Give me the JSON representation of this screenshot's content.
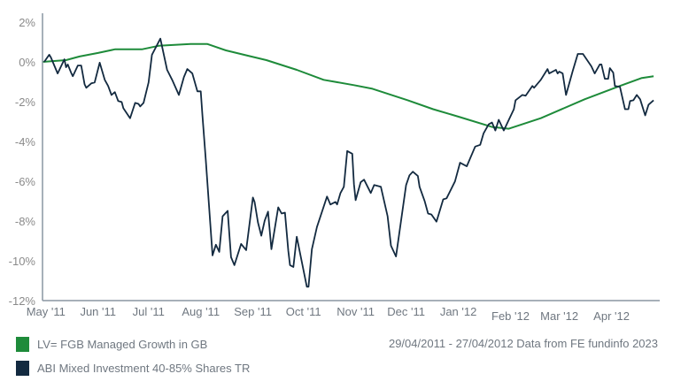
{
  "chart_data": {
    "type": "line",
    "title": "",
    "xlabel": "",
    "ylabel": "",
    "xlim": [
      "2011-04-29",
      "2012-04-27"
    ],
    "ylim": [
      -12,
      2
    ],
    "y_ticks": [
      "2%",
      "0%",
      "-2%",
      "-4%",
      "-6%",
      "-8%",
      "-10%",
      "-12%"
    ],
    "y_tick_values": [
      2,
      0,
      -2,
      -4,
      -6,
      -8,
      -10,
      -12
    ],
    "x_ticks": [
      "May '11",
      "Jun '11",
      "Jul '11",
      "Aug '11",
      "Sep '11",
      "Oct '11",
      "Nov '11",
      "Dec '11",
      "Jan '12",
      "Feb '12",
      "Mar '12",
      "Apr '12"
    ],
    "x_tick_dates": [
      "2011-05-01",
      "2011-06-01",
      "2011-07-01",
      "2011-08-01",
      "2011-09-01",
      "2011-10-01",
      "2011-11-01",
      "2011-12-01",
      "2012-01-01",
      "2012-02-01",
      "2012-03-01",
      "2012-04-01"
    ],
    "grid": false,
    "legend_position": "bottom-left",
    "caption": "29/04/2011 - 27/04/2012 Data from FE fundinfo 2023",
    "series": [
      {
        "name": "LV= FGB Managed Growth in GB",
        "color": "#1e8b3a",
        "points": [
          [
            "2011-04-29",
            0
          ],
          [
            "2011-05-13",
            0.09
          ],
          [
            "2011-05-21",
            0.27
          ],
          [
            "2011-06-01",
            0.45
          ],
          [
            "2011-06-11",
            0.63
          ],
          [
            "2011-06-27",
            0.63
          ],
          [
            "2011-07-07",
            0.81
          ],
          [
            "2011-07-26",
            0.9
          ],
          [
            "2011-08-05",
            0.9
          ],
          [
            "2011-08-16",
            0.58
          ],
          [
            "2011-08-29",
            0.31
          ],
          [
            "2011-09-09",
            0.09
          ],
          [
            "2011-09-27",
            -0.4
          ],
          [
            "2011-10-13",
            -0.9
          ],
          [
            "2011-10-31",
            -1.17
          ],
          [
            "2011-11-11",
            -1.35
          ],
          [
            "2011-12-02",
            -1.93
          ],
          [
            "2011-12-17",
            -2.38
          ],
          [
            "2012-01-02",
            -2.78
          ],
          [
            "2012-01-21",
            -3.27
          ],
          [
            "2012-01-31",
            -3.36
          ],
          [
            "2012-02-19",
            -2.83
          ],
          [
            "2012-03-16",
            -1.88
          ],
          [
            "2012-04-06",
            -1.21
          ],
          [
            "2012-04-19",
            -0.81
          ],
          [
            "2012-04-26",
            -0.72
          ]
        ]
      },
      {
        "name": "ABI Mixed Investment 40-85% Shares TR",
        "color": "#132a40",
        "points": [
          [
            "2011-04-30",
            0
          ],
          [
            "2011-05-03",
            0.36
          ],
          [
            "2011-05-04",
            0.22
          ],
          [
            "2011-05-08",
            -0.58
          ],
          [
            "2011-05-12",
            0.13
          ],
          [
            "2011-05-13",
            -0.27
          ],
          [
            "2011-05-14",
            -0.13
          ],
          [
            "2011-05-16",
            -0.54
          ],
          [
            "2011-05-17",
            -0.72
          ],
          [
            "2011-05-20",
            -0.18
          ],
          [
            "2011-05-22",
            -0.18
          ],
          [
            "2011-05-24",
            -1.12
          ],
          [
            "2011-05-25",
            -1.3
          ],
          [
            "2011-05-28",
            -1.08
          ],
          [
            "2011-05-30",
            -1.03
          ],
          [
            "2011-06-02",
            -0.04
          ],
          [
            "2011-06-05",
            -0.9
          ],
          [
            "2011-06-07",
            -1.21
          ],
          [
            "2011-06-09",
            -1.66
          ],
          [
            "2011-06-11",
            -1.52
          ],
          [
            "2011-06-13",
            -1.97
          ],
          [
            "2011-06-15",
            -2.02
          ],
          [
            "2011-06-16",
            -2.33
          ],
          [
            "2011-06-20",
            -2.83
          ],
          [
            "2011-06-23",
            -2.06
          ],
          [
            "2011-06-25",
            -2.11
          ],
          [
            "2011-06-26",
            -2.24
          ],
          [
            "2011-06-28",
            -2.06
          ],
          [
            "2011-07-01",
            -1.03
          ],
          [
            "2011-07-03",
            0.36
          ],
          [
            "2011-07-08",
            1.17
          ],
          [
            "2011-07-12",
            -0.4
          ],
          [
            "2011-07-15",
            -0.9
          ],
          [
            "2011-07-19",
            -1.66
          ],
          [
            "2011-07-22",
            -0.76
          ],
          [
            "2011-07-24",
            -0.36
          ],
          [
            "2011-07-27",
            -0.58
          ],
          [
            "2011-07-30",
            -1.48
          ],
          [
            "2011-08-01",
            -1.48
          ],
          [
            "2011-08-02",
            -2.69
          ],
          [
            "2011-08-04",
            -4.93
          ],
          [
            "2011-08-08",
            -9.73
          ],
          [
            "2011-08-10",
            -9.19
          ],
          [
            "2011-08-12",
            -9.55
          ],
          [
            "2011-08-14",
            -7.76
          ],
          [
            "2011-08-17",
            -7.49
          ],
          [
            "2011-08-19",
            -9.82
          ],
          [
            "2011-08-21",
            -10.22
          ],
          [
            "2011-08-25",
            -9.15
          ],
          [
            "2011-08-28",
            -9.46
          ],
          [
            "2011-09-01",
            -6.82
          ],
          [
            "2011-09-02",
            -7.04
          ],
          [
            "2011-09-04",
            -8.07
          ],
          [
            "2011-09-06",
            -8.74
          ],
          [
            "2011-09-08",
            -7.98
          ],
          [
            "2011-09-10",
            -7.53
          ],
          [
            "2011-09-12",
            -9.42
          ],
          [
            "2011-09-16",
            -7.31
          ],
          [
            "2011-09-18",
            -7.62
          ],
          [
            "2011-09-20",
            -7.58
          ],
          [
            "2011-09-22",
            -9.51
          ],
          [
            "2011-09-23",
            -10.22
          ],
          [
            "2011-09-25",
            -10.31
          ],
          [
            "2011-09-27",
            -8.79
          ],
          [
            "2011-10-03",
            -11.3
          ],
          [
            "2011-10-04",
            -11.3
          ],
          [
            "2011-10-06",
            -9.42
          ],
          [
            "2011-10-09",
            -8.3
          ],
          [
            "2011-10-15",
            -6.77
          ],
          [
            "2011-10-17",
            -7.17
          ],
          [
            "2011-10-20",
            -7.04
          ],
          [
            "2011-10-21",
            -7.17
          ],
          [
            "2011-10-23",
            -6.59
          ],
          [
            "2011-10-25",
            -6.28
          ],
          [
            "2011-10-27",
            -4.48
          ],
          [
            "2011-10-30",
            -4.62
          ],
          [
            "2011-10-31",
            -6.14
          ],
          [
            "2011-11-01",
            -6.95
          ],
          [
            "2011-11-04",
            -6.05
          ],
          [
            "2011-11-06",
            -5.92
          ],
          [
            "2011-11-10",
            -6.59
          ],
          [
            "2011-11-12",
            -6.19
          ],
          [
            "2011-11-16",
            -6.28
          ],
          [
            "2011-11-20",
            -7.76
          ],
          [
            "2011-11-22",
            -9.24
          ],
          [
            "2011-11-25",
            -9.78
          ],
          [
            "2011-12-01",
            -6.19
          ],
          [
            "2011-12-03",
            -5.7
          ],
          [
            "2011-12-05",
            -5.52
          ],
          [
            "2011-12-08",
            -5.74
          ],
          [
            "2011-12-09",
            -6.28
          ],
          [
            "2011-12-12",
            -6.99
          ],
          [
            "2011-12-14",
            -7.62
          ],
          [
            "2011-12-16",
            -7.67
          ],
          [
            "2011-12-19",
            -8.03
          ],
          [
            "2011-12-23",
            -6.91
          ],
          [
            "2011-12-25",
            -6.86
          ],
          [
            "2011-12-30",
            -6.01
          ],
          [
            "2012-01-02",
            -5.07
          ],
          [
            "2012-01-06",
            -5.25
          ],
          [
            "2012-01-11",
            -4.26
          ],
          [
            "2012-01-14",
            -4.17
          ],
          [
            "2012-01-16",
            -3.59
          ],
          [
            "2012-01-19",
            -3.14
          ],
          [
            "2012-01-21",
            -3.05
          ],
          [
            "2012-01-23",
            -3.45
          ],
          [
            "2012-01-25",
            -2.91
          ],
          [
            "2012-01-28",
            -3.45
          ],
          [
            "2012-02-03",
            -2.38
          ],
          [
            "2012-02-04",
            -1.93
          ],
          [
            "2012-02-08",
            -1.66
          ],
          [
            "2012-02-10",
            -1.7
          ],
          [
            "2012-02-14",
            -1.21
          ],
          [
            "2012-02-15",
            -1.3
          ],
          [
            "2012-02-19",
            -0.9
          ],
          [
            "2012-02-23",
            -0.36
          ],
          [
            "2012-02-24",
            -0.58
          ],
          [
            "2012-02-28",
            -0.4
          ],
          [
            "2012-02-29",
            -0.58
          ],
          [
            "2012-03-01",
            -0.49
          ],
          [
            "2012-03-03",
            -0.58
          ],
          [
            "2012-03-05",
            -1.66
          ],
          [
            "2012-03-09",
            -0.45
          ],
          [
            "2012-03-12",
            0.4
          ],
          [
            "2012-03-15",
            0.4
          ],
          [
            "2012-03-20",
            -0.22
          ],
          [
            "2012-03-22",
            -0.58
          ],
          [
            "2012-03-25",
            -0.13
          ],
          [
            "2012-03-26",
            -0.13
          ],
          [
            "2012-03-28",
            -0.85
          ],
          [
            "2012-03-30",
            -0.85
          ],
          [
            "2012-03-31",
            -0.31
          ],
          [
            "2012-04-02",
            -0.54
          ],
          [
            "2012-04-03",
            -1.21
          ],
          [
            "2012-04-06",
            -1.26
          ],
          [
            "2012-04-09",
            -2.38
          ],
          [
            "2012-04-11",
            -2.38
          ],
          [
            "2012-04-12",
            -1.97
          ],
          [
            "2012-04-14",
            -1.93
          ],
          [
            "2012-04-16",
            -1.66
          ],
          [
            "2012-04-18",
            -1.88
          ],
          [
            "2012-04-21",
            -2.69
          ],
          [
            "2012-04-23",
            -2.15
          ],
          [
            "2012-04-26",
            -1.93
          ]
        ]
      }
    ]
  }
}
